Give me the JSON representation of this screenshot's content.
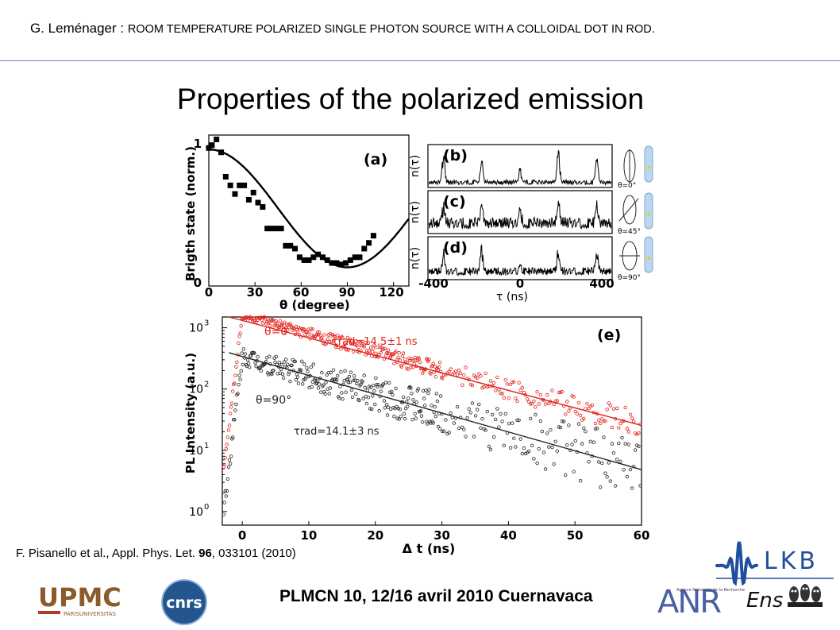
{
  "header": {
    "author": "G. Leménager :",
    "talk_title": "ROOM TEMPERATURE POLARIZED SINGLE PHOTON SOURCE WITH A COLLOIDAL DOT IN ROD."
  },
  "slide_title": "Properties of the polarized emission",
  "citation": {
    "before": "F. Pisanello et al., Appl. Phys. Let. ",
    "volume": "96",
    "after": ", 033101 (2010)"
  },
  "footer": "PLMCN 10, 12/16 avril 2010 Cuernavaca",
  "logos": {
    "upmc": "UPMC",
    "upmc_sub": "PARISUNIVERSITAS",
    "cnrs": "cnrs",
    "lkb": "LKB",
    "anr": "ANR",
    "anr_sub": "Agence Nationale de la Recherche",
    "ens": "Ens"
  },
  "colors": {
    "rule": "#6a88ad",
    "red_series": "#e0201a",
    "black_series": "#222222",
    "lkb_blue": "#1f4e9c",
    "upmc_brown": "#8c5a2b"
  },
  "chart_data": [
    {
      "type": "scatter",
      "panel_label": "(a)",
      "ylabel": "Brigth state (norm.)",
      "xlabel": "θ (degree)",
      "x_ticks": [
        "0",
        "30",
        "60",
        "90",
        "120"
      ],
      "y_ticks": [
        "0",
        "1"
      ],
      "xlim": [
        0,
        130
      ],
      "ylim": [
        0,
        1.05
      ],
      "points": [
        [
          0,
          0.96
        ],
        [
          2,
          0.98
        ],
        [
          5,
          1.02
        ],
        [
          8,
          0.93
        ],
        [
          11,
          0.76
        ],
        [
          14,
          0.7
        ],
        [
          17,
          0.64
        ],
        [
          20,
          0.7
        ],
        [
          23,
          0.7
        ],
        [
          26,
          0.6
        ],
        [
          29,
          0.65
        ],
        [
          32,
          0.58
        ],
        [
          35,
          0.55
        ],
        [
          38,
          0.4
        ],
        [
          41,
          0.4
        ],
        [
          44,
          0.4
        ],
        [
          47,
          0.4
        ],
        [
          50,
          0.28
        ],
        [
          53,
          0.28
        ],
        [
          56,
          0.26
        ],
        [
          59,
          0.2
        ],
        [
          62,
          0.18
        ],
        [
          65,
          0.18
        ],
        [
          68,
          0.2
        ],
        [
          71,
          0.22
        ],
        [
          74,
          0.2
        ],
        [
          77,
          0.18
        ],
        [
          80,
          0.16
        ],
        [
          83,
          0.16
        ],
        [
          86,
          0.15
        ],
        [
          89,
          0.16
        ],
        [
          92,
          0.18
        ],
        [
          95,
          0.2
        ],
        [
          98,
          0.2
        ],
        [
          101,
          0.26
        ],
        [
          104,
          0.3
        ],
        [
          107,
          0.35
        ]
      ],
      "fit": "0.13 + 0.82*cos^2(theta)"
    },
    {
      "type": "line",
      "panels": [
        {
          "label": "(b)",
          "angle": "θ=0°",
          "ylabel": "n(τ)"
        },
        {
          "label": "(c)",
          "angle": "θ=45°",
          "ylabel": "n(τ)"
        },
        {
          "label": "(d)",
          "angle": "θ=90°",
          "ylabel": "n(τ)"
        }
      ],
      "xlabel": "τ (ns)",
      "x_ticks": [
        "-400",
        "0",
        "400"
      ],
      "xlim": [
        -420,
        420
      ],
      "peaks_at": [
        -350,
        -175,
        0,
        175,
        350
      ]
    },
    {
      "type": "scatter",
      "panel_label": "(e)",
      "xlabel": "Δ t (ns)",
      "ylabel": "PL Intensity (a.u.)",
      "log_y": true,
      "x_ticks": [
        "0",
        "10",
        "20",
        "30",
        "40",
        "50",
        "60"
      ],
      "y_ticks": [
        "10^0",
        "10^1",
        "10^2",
        "10^3"
      ],
      "xlim": [
        -3,
        60
      ],
      "ylim": [
        0.6,
        1500
      ],
      "series": [
        {
          "name": "θ=0",
          "annotation": "τrad=14.5±1 ns",
          "tau_ns": 14.5,
          "amplitude": 1600,
          "color": "#e0201a"
        },
        {
          "name": "θ=90°",
          "annotation": "τrad=14.1±3 ns",
          "tau_ns": 14.1,
          "amplitude": 340,
          "color": "#222222"
        }
      ]
    }
  ]
}
